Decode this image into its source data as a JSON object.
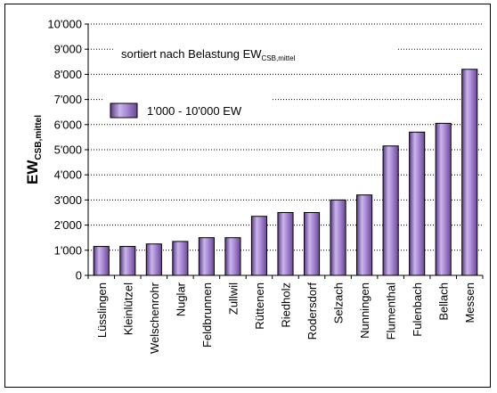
{
  "chart_data": {
    "type": "bar",
    "categories": [
      "Lüsslingen",
      "Kleinlützel",
      "Welschenrohr",
      "Nuglar",
      "Feldbrunnen",
      "Zullwil",
      "Rüttenen",
      "Riedholz",
      "Rodersdorf",
      "Selzach",
      "Nunningen",
      "Flumenthal",
      "Fulenbach",
      "Bellach",
      "Messen"
    ],
    "series": [
      {
        "name": "1'000 - 10'000 EW",
        "values": [
          1150,
          1150,
          1250,
          1350,
          1500,
          1500,
          2350,
          2500,
          2500,
          3000,
          3200,
          5150,
          5700,
          6050,
          8200
        ]
      }
    ],
    "ylim": [
      0,
      10000
    ],
    "yticks": [
      "0",
      "1'000",
      "2'000",
      "3'000",
      "4'000",
      "5'000",
      "6'000",
      "7'000",
      "8'000",
      "9'000",
      "10'000"
    ],
    "ylabel": {
      "main": "EW",
      "sub": "CSB,mittel"
    },
    "annotation": {
      "main": "sortiert nach Belastung EW",
      "sub": "CSB,mittel"
    },
    "grid": true,
    "legend_position": "top-left",
    "colors": {
      "bar_fill": "#a98ad6",
      "bar_dark": "#5b3a86",
      "bar_light": "#d9ccf0",
      "grid": "#000000"
    }
  }
}
